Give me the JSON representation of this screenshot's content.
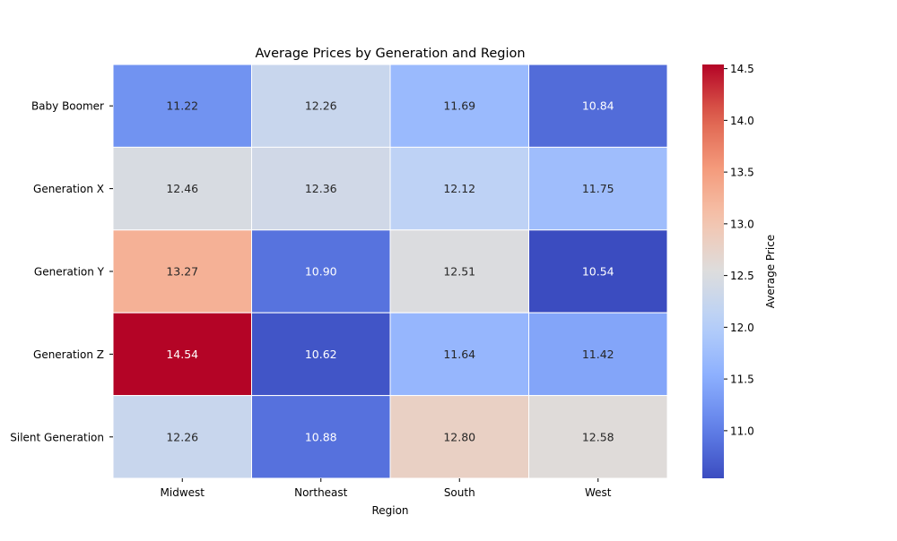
{
  "chart_data": {
    "type": "heatmap",
    "title": "Average Prices by Generation and Region",
    "xlabel": "Region",
    "ylabel": "",
    "x_categories": [
      "Midwest",
      "Northeast",
      "South",
      "West"
    ],
    "y_categories": [
      "Baby Boomer",
      "Generation X",
      "Generation Y",
      "Generation Z",
      "Silent Generation"
    ],
    "values": [
      [
        11.22,
        12.26,
        11.69,
        10.84
      ],
      [
        12.46,
        12.36,
        12.12,
        11.75
      ],
      [
        13.27,
        10.9,
        12.51,
        10.54
      ],
      [
        14.54,
        10.62,
        11.64,
        11.42
      ],
      [
        12.26,
        10.88,
        12.8,
        12.58
      ]
    ],
    "value_format": "2 decimals",
    "colormap": "coolwarm",
    "colorbar": {
      "label": "Average Price",
      "min": 10.54,
      "max": 14.54,
      "ticks": [
        "11.0",
        "11.5",
        "12.0",
        "12.5",
        "13.0",
        "13.5",
        "14.0",
        "14.5"
      ]
    },
    "grid": false,
    "cell_border_color": "#ffffff"
  }
}
